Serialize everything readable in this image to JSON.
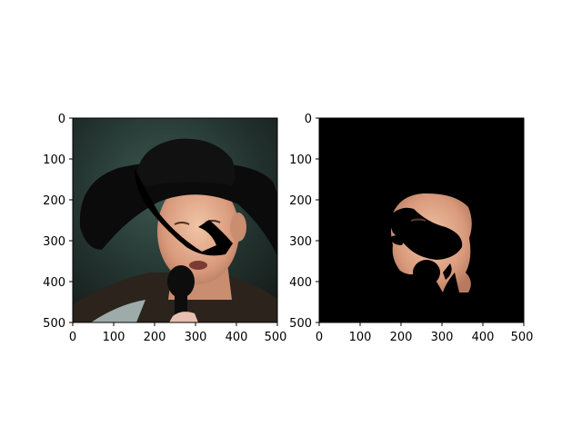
{
  "figure": {
    "panels": [
      {
        "id": "original",
        "image_description_name": "cowboy-hat-man-photo",
        "x_ticks": [
          "0",
          "100",
          "200",
          "300",
          "400",
          "500"
        ],
        "y_ticks": [
          "0",
          "100",
          "200",
          "300",
          "400",
          "500"
        ]
      },
      {
        "id": "masked",
        "image_description_name": "masked-face-photo",
        "x_ticks": [
          "0",
          "100",
          "200",
          "300",
          "400",
          "500"
        ],
        "y_ticks": [
          "0",
          "100",
          "200",
          "300",
          "400",
          "500"
        ]
      }
    ]
  }
}
